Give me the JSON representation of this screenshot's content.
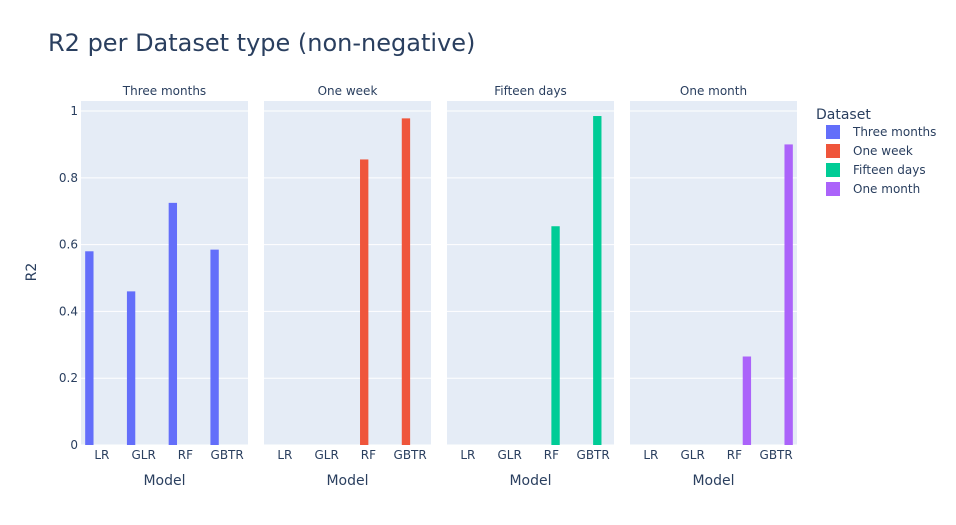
{
  "chart_data": {
    "type": "bar",
    "title": "R2 per Dataset type (non-negative)",
    "ylabel": "R2",
    "xlabel": "Model",
    "ylim": [
      0,
      1.03
    ],
    "yticks": [
      0,
      0.2,
      0.4,
      0.6,
      0.8,
      1
    ],
    "ytick_labels": [
      "0",
      "0.2",
      "0.4",
      "0.6",
      "0.8",
      "1"
    ],
    "categories": [
      "LR",
      "GLR",
      "RF",
      "GBTR"
    ],
    "legend_title": "Dataset",
    "legend_position": "right",
    "grid": true,
    "panels": [
      {
        "title": "Three months",
        "series": "Three months"
      },
      {
        "title": "One week",
        "series": "One week"
      },
      {
        "title": "Fifteen days",
        "series": "Fifteen days"
      },
      {
        "title": "One month",
        "series": "One month"
      }
    ],
    "series": [
      {
        "name": "Three months",
        "color": "#636efa",
        "values": [
          0.58,
          0.46,
          0.725,
          0.585
        ]
      },
      {
        "name": "One week",
        "color": "#ef553b",
        "values": [
          0,
          0,
          0.855,
          0.978
        ]
      },
      {
        "name": "Fifteen days",
        "color": "#00cc96",
        "values": [
          0,
          0,
          0.655,
          0.985
        ]
      },
      {
        "name": "One month",
        "color": "#ab63fa",
        "values": [
          0,
          0,
          0.265,
          0.9
        ]
      }
    ]
  }
}
